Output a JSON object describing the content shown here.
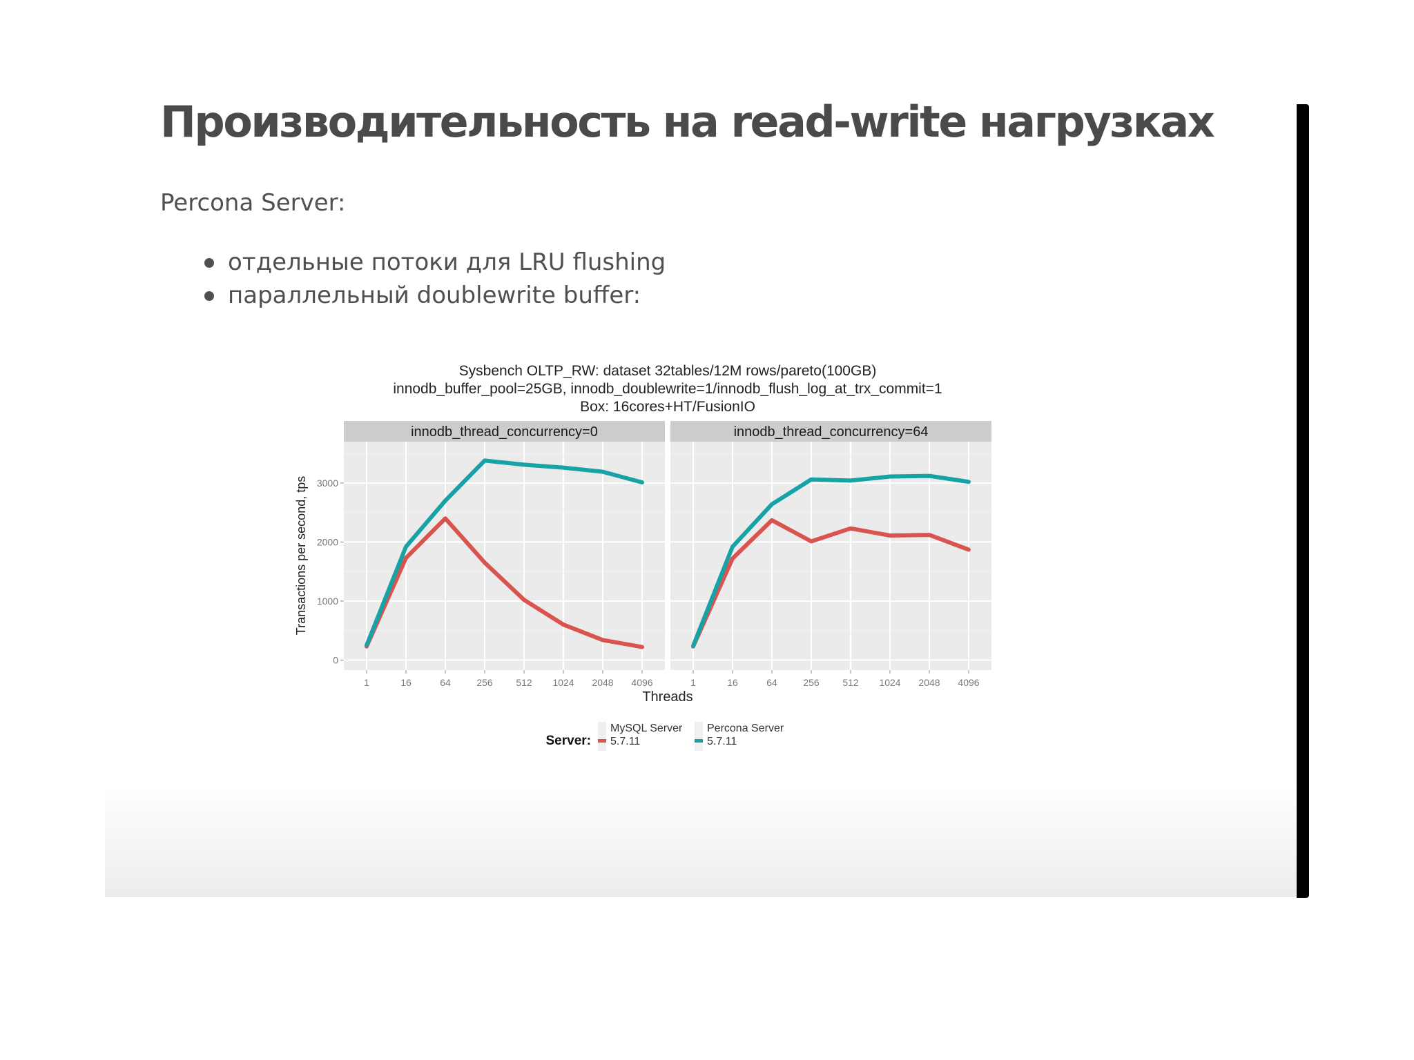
{
  "slide": {
    "title": "Производительность на read-write нагрузках",
    "intro": "Percona Server:",
    "bullets": [
      "отдельные потоки для LRU flushing",
      "параллельный doublewrite buffer:"
    ]
  },
  "colors": {
    "mysql": "#d9534f",
    "percona": "#17a2a6",
    "panel_bg": "#ebebeb",
    "strip_bg": "#cccccc",
    "text": "#505050"
  },
  "chart_data": {
    "type": "line",
    "title_lines": [
      "Sysbench OLTP_RW: dataset 32tables/12M rows/pareto(100GB)",
      "innodb_buffer_pool=25GB, innodb_doublewrite=1/innodb_flush_log_at_trx_commit=1",
      "Box: 16cores+HT/FusionIO"
    ],
    "xlabel": "Threads",
    "ylabel": "Transactions per second, tps",
    "categories": [
      "1",
      "16",
      "64",
      "256",
      "512",
      "1024",
      "2048",
      "4096"
    ],
    "yticks": [
      "0",
      "1000",
      "2000",
      "3000"
    ],
    "ylim": [
      -170,
      3700
    ],
    "grid": true,
    "legend": {
      "title": "Server:",
      "placement": "bottom",
      "entries": [
        {
          "line1": "MySQL Server",
          "line2": "5.7.11"
        },
        {
          "line1": "Percona Server",
          "line2": "5.7.11"
        }
      ]
    },
    "panels": [
      {
        "strip": "innodb_thread_concurrency=0",
        "series": [
          {
            "values": [
              230,
              1730,
              2400,
              1650,
              1020,
              600,
              340,
              220
            ]
          },
          {
            "values": [
              250,
              1920,
              2700,
              3380,
              3310,
              3260,
              3190,
              3010
            ]
          }
        ]
      },
      {
        "strip": "innodb_thread_concurrency=64",
        "series": [
          {
            "values": [
              230,
              1720,
              2370,
              2010,
              2230,
              2110,
              2120,
              1870
            ]
          },
          {
            "values": [
              240,
              1920,
              2640,
              3060,
              3040,
              3110,
              3120,
              3020
            ]
          }
        ]
      }
    ]
  }
}
